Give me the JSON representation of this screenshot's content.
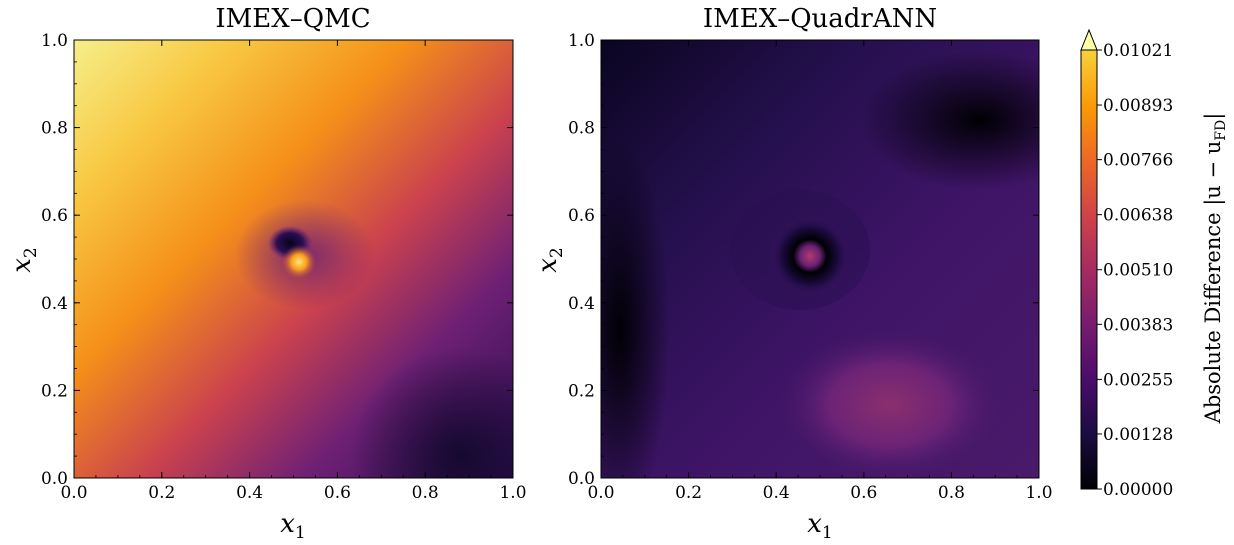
{
  "chart_data": [
    {
      "type": "heatmap",
      "title": "IMEX–QMC",
      "xlabel": "x",
      "xlabel_sub": "1",
      "ylabel": "x",
      "ylabel_sub": "2",
      "xlim": [
        0.0,
        1.0
      ],
      "ylim": [
        0.0,
        1.0
      ],
      "xticks": [
        "0.0",
        "0.2",
        "0.4",
        "0.6",
        "0.8",
        "1.0"
      ],
      "yticks": [
        "0.0",
        "0.2",
        "0.4",
        "0.6",
        "0.8",
        "1.0"
      ],
      "field": {
        "description": "diagonal gradient from high top-left to low bottom-right with a vortex at center",
        "max_region": [
          0.0,
          1.0
        ],
        "min_region": [
          0.88,
          0.05
        ],
        "feature_center": [
          0.5,
          0.52
        ]
      }
    },
    {
      "type": "heatmap",
      "title": "IMEX–QuadrANN",
      "xlabel": "x",
      "xlabel_sub": "1",
      "ylabel": "x",
      "ylabel_sub": "2",
      "xlim": [
        0.0,
        1.0
      ],
      "ylim": [
        0.0,
        1.0
      ],
      "xticks": [
        "0.0",
        "0.2",
        "0.4",
        "0.6",
        "0.8",
        "1.0"
      ],
      "yticks": [
        "0.0",
        "0.2",
        "0.4",
        "0.6",
        "0.8",
        "1.0"
      ],
      "field": {
        "description": "low values overall, moderate blob near lower-right, vortex at center",
        "blob_center": [
          0.68,
          0.14
        ],
        "feature_center": [
          0.49,
          0.51
        ]
      }
    }
  ],
  "colorbar": {
    "label": "Absolute Difference |u − u",
    "label_sub": "FD",
    "label_end": "|",
    "colormap": "inferno",
    "range": [
      0.0,
      0.01021
    ],
    "extend": "max",
    "ticks": [
      "0.00000",
      "0.00128",
      "0.00255",
      "0.00383",
      "0.00510",
      "0.00638",
      "0.00766",
      "0.00893",
      "0.01021"
    ]
  }
}
